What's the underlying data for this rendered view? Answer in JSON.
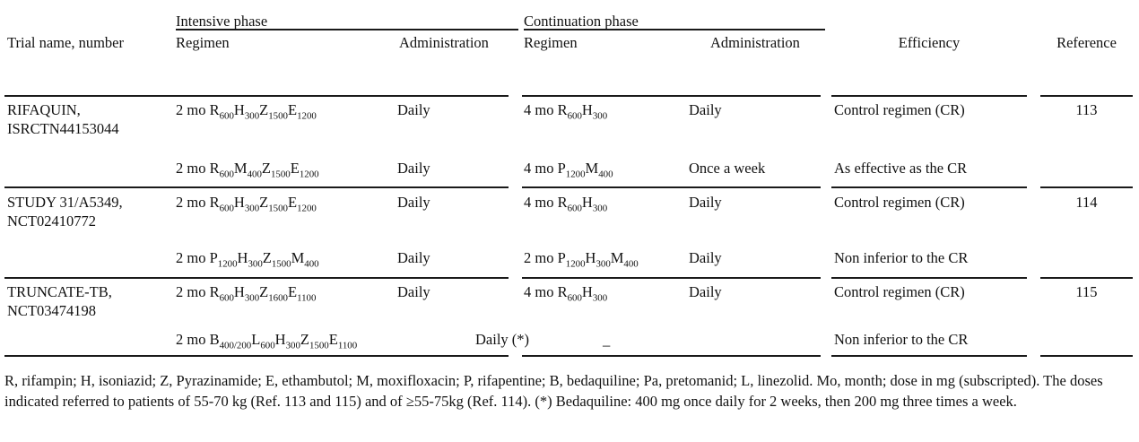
{
  "header": {
    "trial": "Trial name, number",
    "intensive_phase": "Intensive phase",
    "continuation_phase": "Continuation phase",
    "regimen_int": "Regimen",
    "admin_int": "Administration",
    "regimen_cont": "Regimen",
    "admin_cont": "Administration",
    "efficiency": "Efficiency",
    "reference": "Reference"
  },
  "trials": [
    {
      "name": "RIFAQUIN,",
      "number": "ISRCTN44153044",
      "reference": "113",
      "rows": [
        {
          "int_regimen": "2 mo R_{600}H_{300}Z_{1500}E_{1200}",
          "int_admin": "Daily",
          "cont_regimen": "4 mo R_{600}H_{300}",
          "cont_admin": "Daily",
          "efficiency": "Control regimen (CR)"
        },
        {
          "int_regimen": "2 mo R_{600}M_{400}Z_{1500}E_{1200}",
          "int_admin": "Daily",
          "cont_regimen": "4 mo P_{1200}M_{400}",
          "cont_admin": "Once a week",
          "efficiency": "As effective as the CR"
        }
      ]
    },
    {
      "name": "STUDY 31/A5349,",
      "number": "NCT02410772",
      "reference": "114",
      "rows": [
        {
          "int_regimen": "2 mo R_{600}H_{300}Z_{1500}E_{1200}",
          "int_admin": "Daily",
          "cont_regimen": "4 mo R_{600}H_{300}",
          "cont_admin": "Daily",
          "efficiency": "Control regimen (CR)"
        },
        {
          "int_regimen": "2 mo P_{1200}H_{300}Z_{1500}M_{400}",
          "int_admin": "Daily",
          "cont_regimen": "2 mo P_{1200}H_{300}M_{400}",
          "cont_admin": "Daily",
          "efficiency": "Non inferior to the CR"
        }
      ]
    },
    {
      "name": "TRUNCATE-TB,",
      "number": "NCT03474198",
      "reference": "115",
      "rows": [
        {
          "int_regimen": "2 mo R_{600}H_{300}Z_{1600}E_{1100}",
          "int_admin": "Daily",
          "cont_regimen": "4 mo R_{600}H_{300}",
          "cont_admin": "Daily",
          "efficiency": "Control regimen (CR)"
        },
        {
          "int_regimen": "2 mo B_{400/200}L_{600}H_{300}Z_{1500}E_{1100}",
          "int_admin": "Daily (*)",
          "cont_regimen": "–",
          "cont_admin": "",
          "efficiency": "Non inferior to the CR"
        }
      ]
    }
  ],
  "footnote": "R, rifampin; H, isoniazid; Z, Pyrazinamide; E, ethambutol; M, moxifloxacin; P, rifapentine; B, bedaquiline; Pa, pretomanid; L, linezolid. Mo, month; dose in mg (subscripted). The doses indicated referred to patients of 55-70 kg (Ref. 113 and 115) and of ≥55-75kg (Ref. 114). (*) Bedaquiline: 400 mg once daily for 2 weeks, then 200 mg three times a week."
}
